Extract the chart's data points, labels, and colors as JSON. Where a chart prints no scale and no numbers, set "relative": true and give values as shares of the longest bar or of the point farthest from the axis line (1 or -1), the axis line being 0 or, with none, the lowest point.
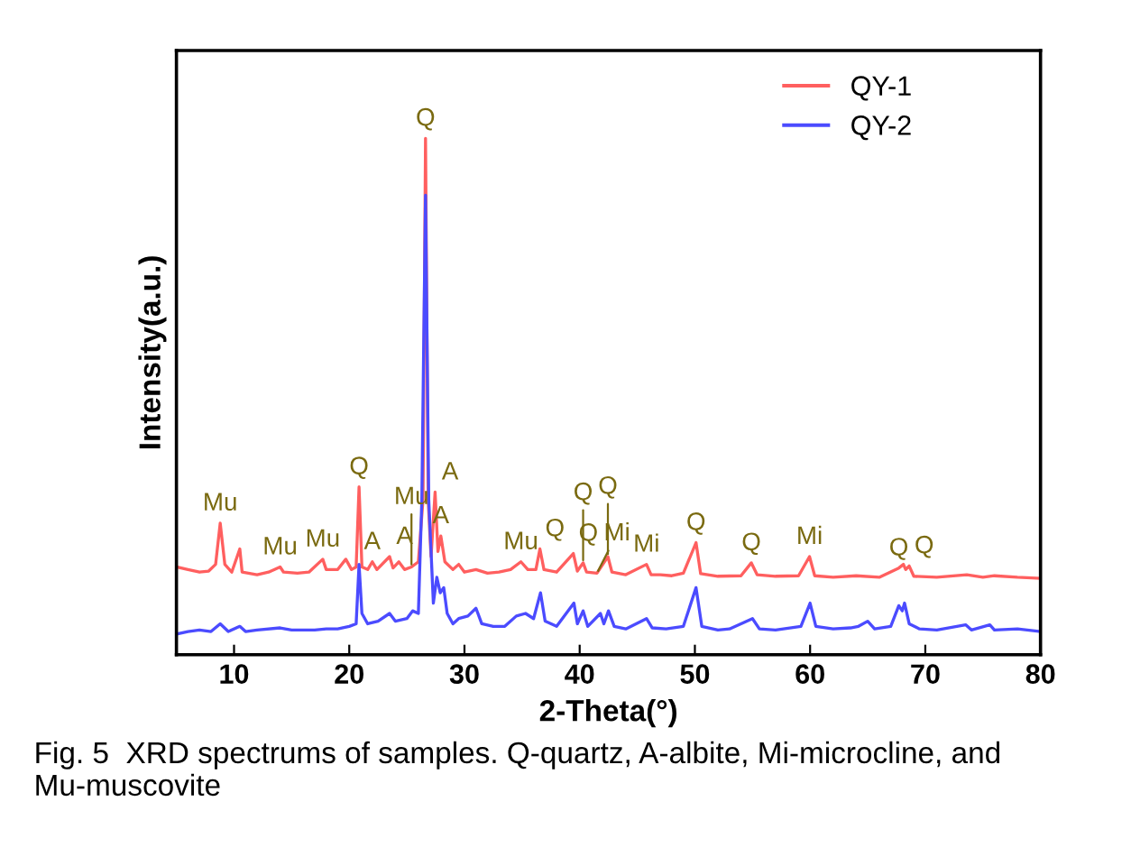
{
  "chart_data": {
    "type": "line",
    "relative": true,
    "xlabel": "2-Theta(°)",
    "ylabel": "Intensity(a.u.)",
    "xlim": [
      5,
      80
    ],
    "xticks": [
      10,
      20,
      30,
      40,
      50,
      60,
      70,
      80
    ],
    "tick_labels": "x",
    "legend": "top right",
    "grid": false,
    "series": [
      {
        "name": "QY-1",
        "color": "#ff5f5f",
        "x": [
          5,
          6,
          7,
          7.8,
          8.4,
          8.8,
          9.2,
          9.8,
          10.5,
          10.7,
          12,
          13,
          14,
          14.3,
          15.5,
          16.5,
          17.7,
          18,
          19,
          19.7,
          20.2,
          20.6,
          20.85,
          21.1,
          21.6,
          22,
          22.4,
          23.5,
          23.8,
          24.3,
          24.8,
          25.4,
          26.0,
          26.4,
          26.62,
          26.85,
          27.1,
          27.45,
          27.7,
          27.95,
          28.3,
          29,
          29.5,
          30,
          31,
          32,
          33,
          34,
          34.9,
          35.5,
          36.2,
          36.55,
          36.9,
          38,
          39.45,
          39.8,
          40.3,
          40.6,
          41.5,
          42.45,
          42.8,
          44,
          45.8,
          46.2,
          47,
          48,
          49,
          50.1,
          50.5,
          52,
          54,
          54.9,
          55.4,
          57,
          59,
          59.95,
          60.4,
          62,
          64,
          66,
          67.7,
          68.1,
          68.3,
          68.6,
          69,
          71,
          73.6,
          75,
          76,
          78,
          80
        ],
        "values": [
          0.17,
          0.165,
          0.16,
          0.162,
          0.175,
          0.255,
          0.175,
          0.16,
          0.205,
          0.16,
          0.155,
          0.16,
          0.17,
          0.16,
          0.158,
          0.16,
          0.185,
          0.165,
          0.165,
          0.185,
          0.165,
          0.17,
          0.325,
          0.17,
          0.165,
          0.18,
          0.165,
          0.19,
          0.168,
          0.18,
          0.165,
          0.17,
          0.18,
          0.3,
          1.0,
          0.3,
          0.19,
          0.315,
          0.2,
          0.23,
          0.18,
          0.165,
          0.175,
          0.16,
          0.165,
          0.158,
          0.16,
          0.165,
          0.18,
          0.165,
          0.165,
          0.205,
          0.165,
          0.16,
          0.196,
          0.162,
          0.178,
          0.16,
          0.158,
          0.19,
          0.16,
          0.155,
          0.175,
          0.155,
          0.155,
          0.153,
          0.158,
          0.217,
          0.157,
          0.152,
          0.153,
          0.178,
          0.155,
          0.152,
          0.153,
          0.19,
          0.153,
          0.15,
          0.153,
          0.15,
          0.168,
          0.175,
          0.165,
          0.172,
          0.152,
          0.15,
          0.155,
          0.15,
          0.153,
          0.15,
          0.148
        ]
      },
      {
        "name": "QY-2",
        "color": "#4b4bff",
        "x": [
          5,
          6,
          7,
          8,
          8.8,
          9.5,
          10.5,
          11,
          12,
          14,
          15,
          17,
          18,
          19,
          20,
          20.6,
          20.85,
          21.1,
          21.6,
          22.5,
          23.5,
          24,
          25,
          25.5,
          26.0,
          26.3,
          26.62,
          26.9,
          27.3,
          27.6,
          27.9,
          28.2,
          28.5,
          29,
          29.5,
          30.3,
          31,
          31.5,
          32.5,
          33.5,
          34.5,
          35.3,
          36,
          36.6,
          37,
          38,
          39.5,
          39.8,
          40.3,
          40.7,
          41.8,
          42.1,
          42.5,
          43,
          44,
          45.8,
          46.3,
          47.5,
          49,
          50.1,
          50.6,
          52,
          53,
          55,
          55.6,
          57,
          59.2,
          60,
          60.5,
          62,
          63.5,
          64.2,
          65,
          65.6,
          67,
          67.7,
          68,
          68.2,
          68.6,
          69.5,
          71,
          73.5,
          74,
          75.6,
          76,
          78,
          80
        ],
        "values": [
          0.04,
          0.045,
          0.048,
          0.045,
          0.06,
          0.045,
          0.055,
          0.045,
          0.048,
          0.052,
          0.048,
          0.048,
          0.05,
          0.05,
          0.055,
          0.06,
          0.175,
          0.08,
          0.06,
          0.065,
          0.08,
          0.065,
          0.07,
          0.085,
          0.08,
          0.3,
          0.89,
          0.3,
          0.1,
          0.15,
          0.12,
          0.13,
          0.08,
          0.06,
          0.07,
          0.075,
          0.09,
          0.06,
          0.055,
          0.055,
          0.075,
          0.08,
          0.07,
          0.12,
          0.065,
          0.055,
          0.1,
          0.06,
          0.085,
          0.055,
          0.08,
          0.06,
          0.085,
          0.055,
          0.05,
          0.07,
          0.052,
          0.05,
          0.055,
          0.13,
          0.055,
          0.048,
          0.05,
          0.07,
          0.05,
          0.048,
          0.055,
          0.1,
          0.055,
          0.05,
          0.052,
          0.055,
          0.065,
          0.05,
          0.055,
          0.095,
          0.085,
          0.1,
          0.06,
          0.05,
          0.048,
          0.058,
          0.048,
          0.058,
          0.048,
          0.05,
          0.045
        ]
      }
    ],
    "annotations": [
      {
        "text": "Mu",
        "x": 8.8,
        "y": 0.255
      },
      {
        "text": "Mu",
        "x": 14,
        "y": 0.17
      },
      {
        "text": "Mu",
        "x": 17.7,
        "y": 0.185
      },
      {
        "text": "Q",
        "x": 20.85,
        "y": 0.325
      },
      {
        "text": "A",
        "x": 22,
        "y": 0.18
      },
      {
        "text": "A",
        "x": 23.5,
        "y": 0.19
      },
      {
        "text": "Mu",
        "x": 25.4,
        "y": 0.17
      },
      {
        "text": "Q",
        "x": 26.62,
        "y": 1.0
      },
      {
        "text": "A",
        "x": 27.45,
        "y": 0.315
      },
      {
        "text": "A",
        "x": 27.95,
        "y": 0.23
      },
      {
        "text": "Mu",
        "x": 34.9,
        "y": 0.18
      },
      {
        "text": "Q",
        "x": 36.55,
        "y": 0.205
      },
      {
        "text": "Q",
        "x": 39.45,
        "y": 0.196
      },
      {
        "text": "Q",
        "x": 40.3,
        "y": 0.178
      },
      {
        "text": "Mi",
        "x": 41.5,
        "y": 0.158
      },
      {
        "text": "Q",
        "x": 42.45,
        "y": 0.19
      },
      {
        "text": "Mi",
        "x": 45.8,
        "y": 0.175
      },
      {
        "text": "Q",
        "x": 50.1,
        "y": 0.217
      },
      {
        "text": "Q",
        "x": 54.9,
        "y": 0.178
      },
      {
        "text": "Mi",
        "x": 59.95,
        "y": 0.19
      },
      {
        "text": "Q",
        "x": 67.7,
        "y": 0.168
      },
      {
        "text": "Q",
        "x": 68.6,
        "y": 0.172
      },
      "Fig. 5  XRD spectrums of samples. Q-quartz, A-albite, Mi-microcline, and Mu-muscovite"
    ]
  }
}
